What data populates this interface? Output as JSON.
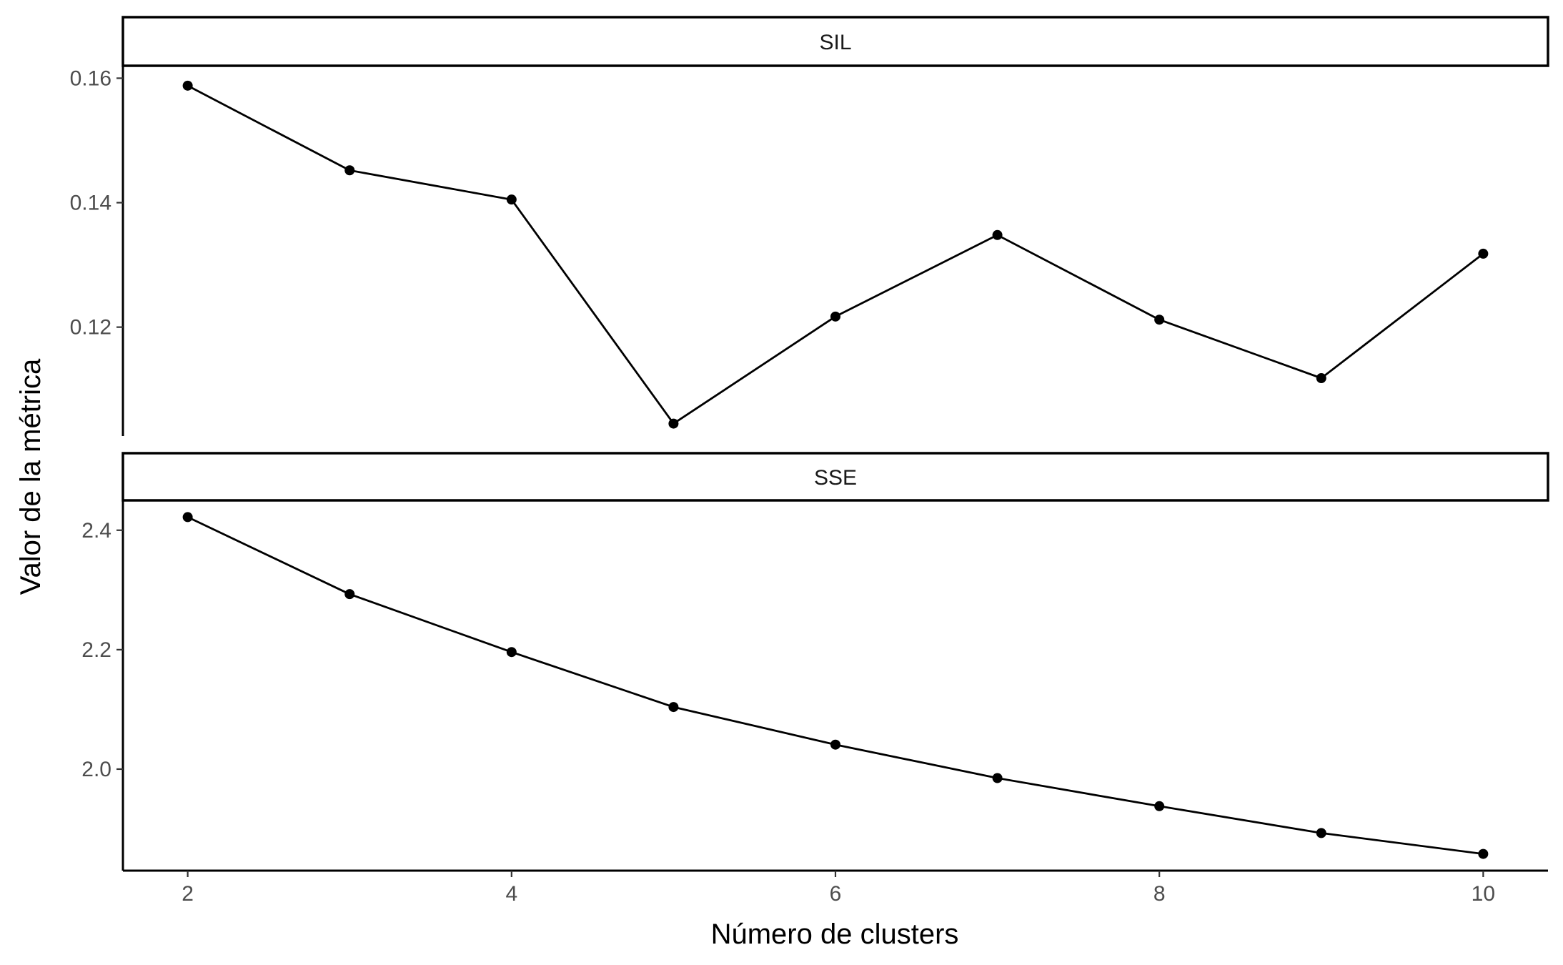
{
  "chart_data": {
    "type": "line",
    "xlabel": "Número de clusters",
    "ylabel": "Valor de la métrica",
    "grid": false,
    "x": [
      2,
      3,
      4,
      5,
      6,
      7,
      8,
      9,
      10
    ],
    "xlim": [
      1.6,
      10.4
    ],
    "xticks": [
      2,
      4,
      6,
      8,
      10
    ],
    "panels": [
      {
        "strip": "SIL",
        "ylim": [
          0.1025,
          0.162
        ],
        "yticks": [
          0.12,
          0.14,
          0.16
        ],
        "ytick_labels": [
          "0.12",
          "0.14",
          "0.16"
        ],
        "values": [
          0.1588,
          0.1452,
          0.1405,
          0.1045,
          0.1217,
          0.1348,
          0.1212,
          0.1118,
          0.1318
        ]
      },
      {
        "strip": "SSE",
        "ylim": [
          1.83,
          2.45
        ],
        "yticks": [
          2.0,
          2.2,
          2.4
        ],
        "ytick_labels": [
          "2.0",
          "2.2",
          "2.4"
        ],
        "values": [
          2.422,
          2.293,
          2.196,
          2.104,
          2.041,
          1.985,
          1.938,
          1.893,
          1.858
        ]
      }
    ],
    "colors": {
      "line": "#000000",
      "point": "#000000",
      "strip_fill": "#ffffff"
    }
  }
}
